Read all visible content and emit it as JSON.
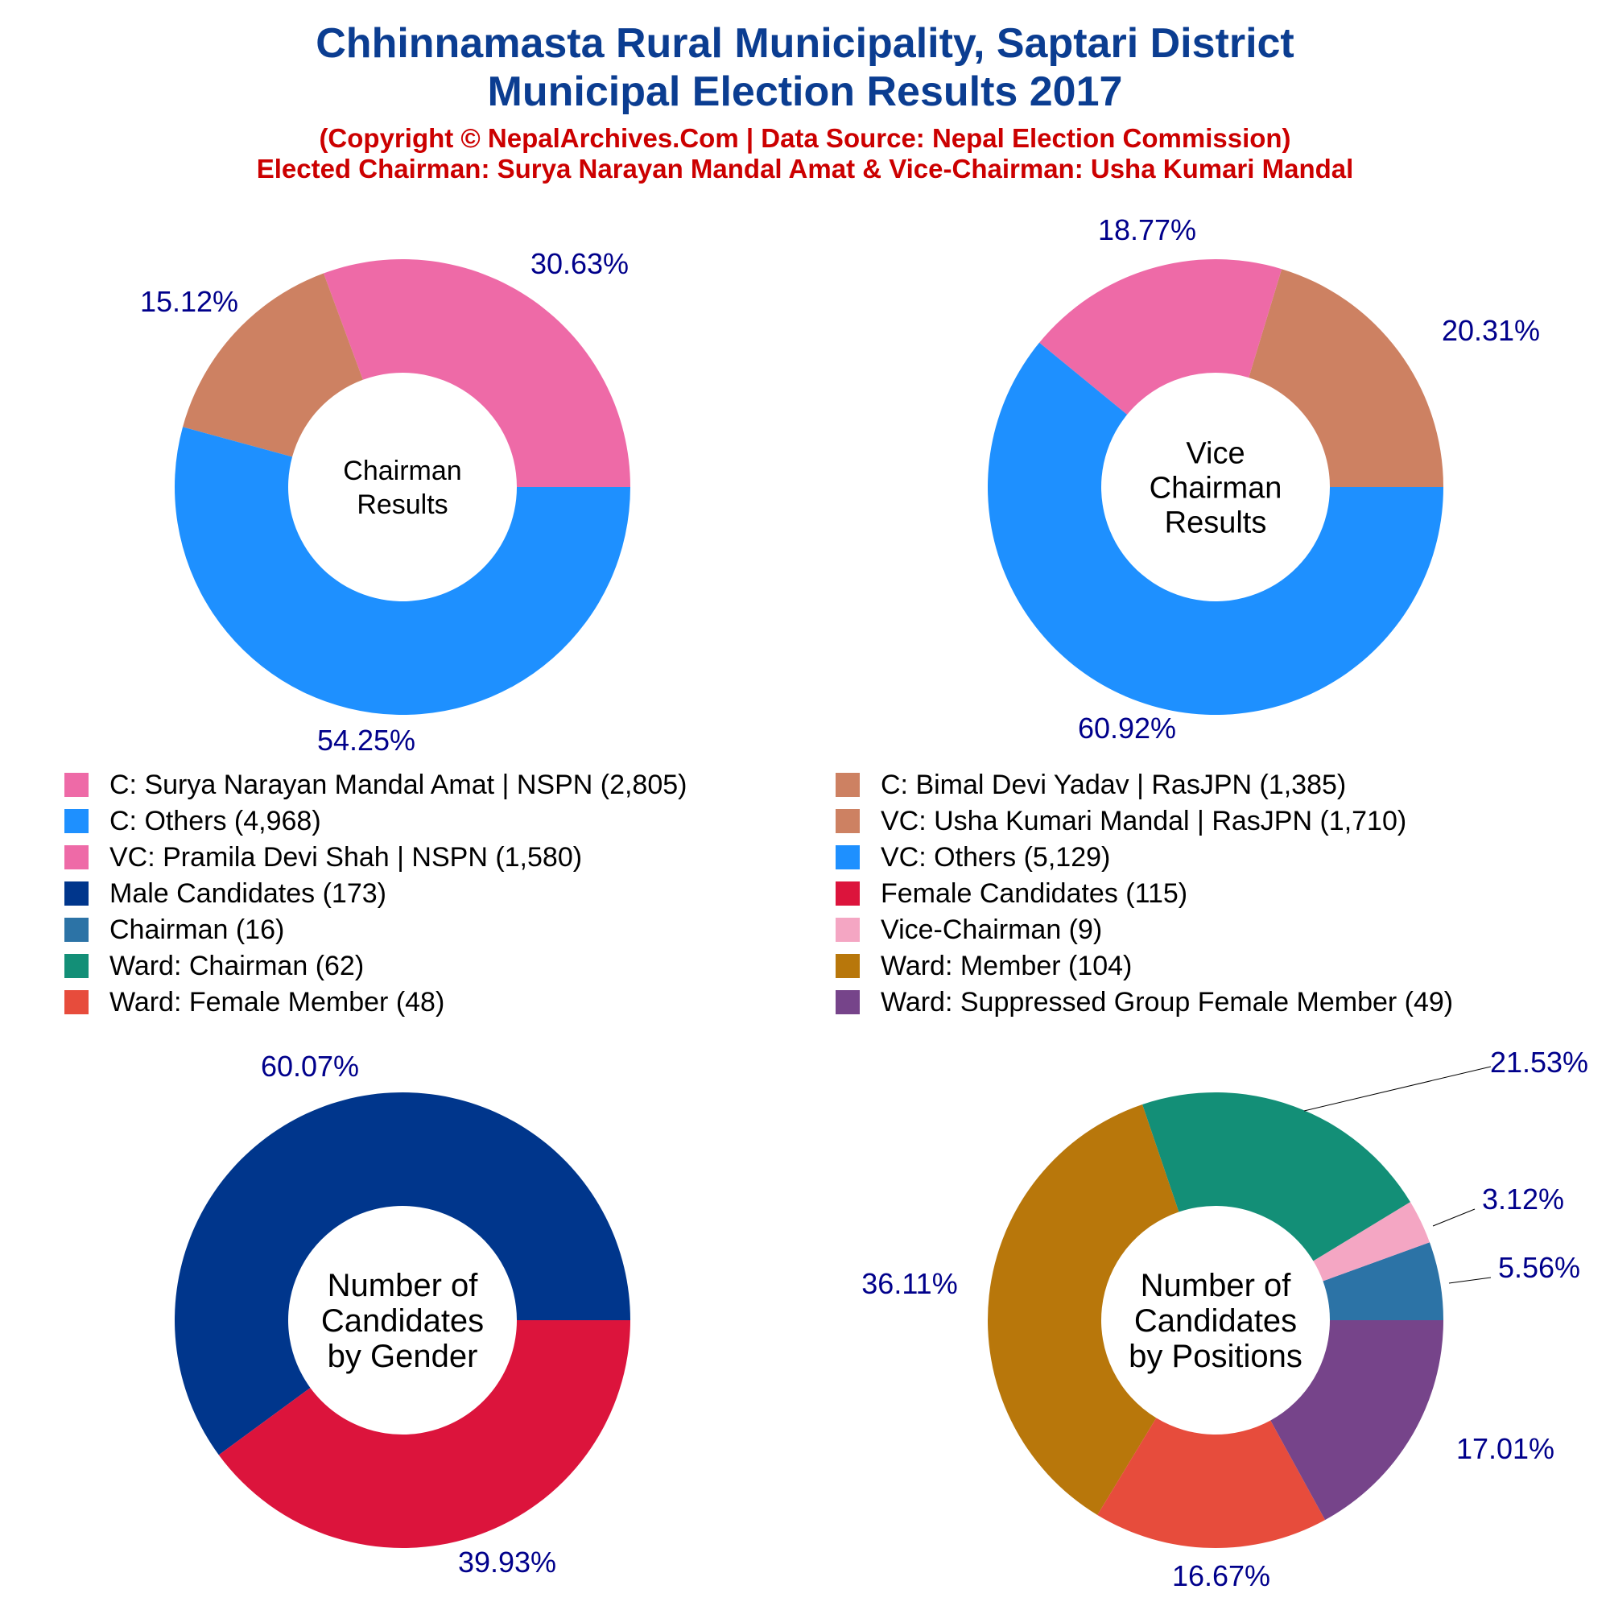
{
  "title": {
    "line1": "Chhinnamasta Rural Municipality, Saptari District",
    "line2": "Municipal Election Results 2017",
    "copyright": "(Copyright © NepalArchives.Com | Data Source: Nepal Election Commission)",
    "elected": "Elected Chairman: Surya Narayan Mandal Amat & Vice-Chairman: Usha Kumari Mandal"
  },
  "colors": {
    "title": "#0b3d91",
    "subtitle": "#cc0000",
    "percent_label": "#00008b",
    "center_text": "#000000"
  },
  "legend": [
    {
      "label": "C: Surya Narayan Mandal Amat | NSPN (2,805)",
      "color": "#ee6aa7"
    },
    {
      "label": "C: Bimal Devi Yadav | RasJPN (1,385)",
      "color": "#cd8162"
    },
    {
      "label": "C: Others (4,968)",
      "color": "#1e90ff"
    },
    {
      "label": "VC: Usha Kumari Mandal | RasJPN (1,710)",
      "color": "#cd8162"
    },
    {
      "label": "VC: Pramila Devi Shah | NSPN (1,580)",
      "color": "#ee6aa7"
    },
    {
      "label": "VC: Others (5,129)",
      "color": "#1e90ff"
    },
    {
      "label": "Male Candidates (173)",
      "color": "#00368c"
    },
    {
      "label": "Female Candidates (115)",
      "color": "#dc143c"
    },
    {
      "label": "Chairman (16)",
      "color": "#2c73a6"
    },
    {
      "label": "Vice-Chairman (9)",
      "color": "#f4a6c3"
    },
    {
      "label": "Ward: Chairman (62)",
      "color": "#138f77"
    },
    {
      "label": "Ward: Member (104)",
      "color": "#b8770b"
    },
    {
      "label": "Ward: Female Member (48)",
      "color": "#e74c3c"
    },
    {
      "label": "Ward: Suppressed Group Female Member (49)",
      "color": "#76448a"
    }
  ],
  "chart_data": [
    {
      "type": "pie",
      "name": "chairman",
      "center_label": [
        "Chairman",
        "Results"
      ],
      "slices": [
        {
          "label": "C: Surya Narayan Mandal Amat | NSPN",
          "value": 2805,
          "percent_label": "30.63%",
          "color": "#ee6aa7"
        },
        {
          "label": "C: Bimal Devi Yadav | RasJPN",
          "value": 1385,
          "percent_label": "15.12%",
          "color": "#cd8162"
        },
        {
          "label": "C: Others",
          "value": 4968,
          "percent_label": "54.25%",
          "color": "#1e90ff"
        }
      ]
    },
    {
      "type": "pie",
      "name": "vice-chairman",
      "center_label": [
        "Vice",
        "Chairman",
        "Results"
      ],
      "slices": [
        {
          "label": "VC: Usha Kumari Mandal | RasJPN",
          "value": 1710,
          "percent_label": "20.31%",
          "color": "#cd8162"
        },
        {
          "label": "VC: Pramila Devi Shah | NSPN",
          "value": 1580,
          "percent_label": "18.77%",
          "color": "#ee6aa7"
        },
        {
          "label": "VC: Others",
          "value": 5129,
          "percent_label": "60.92%",
          "color": "#1e90ff"
        }
      ]
    },
    {
      "type": "pie",
      "name": "gender",
      "center_label": [
        "Number of",
        "Candidates",
        "by Gender"
      ],
      "slices": [
        {
          "label": "Male Candidates",
          "value": 173,
          "percent_label": "60.07%",
          "color": "#00368c"
        },
        {
          "label": "Female Candidates",
          "value": 115,
          "percent_label": "39.93%",
          "color": "#dc143c"
        }
      ]
    },
    {
      "type": "pie",
      "name": "positions",
      "center_label": [
        "Number of",
        "Candidates",
        "by Positions"
      ],
      "slices": [
        {
          "label": "Chairman",
          "value": 16,
          "percent_label": "5.56%",
          "color": "#2c73a6"
        },
        {
          "label": "Vice-Chairman",
          "value": 9,
          "percent_label": "3.12%",
          "color": "#f4a6c3"
        },
        {
          "label": "Ward: Chairman",
          "value": 62,
          "percent_label": "21.53%",
          "color": "#138f77"
        },
        {
          "label": "Ward: Member",
          "value": 104,
          "percent_label": "36.11%",
          "color": "#b8770b"
        },
        {
          "label": "Ward: Female Member",
          "value": 48,
          "percent_label": "16.67%",
          "color": "#e74c3c"
        },
        {
          "label": "Ward: Suppressed Group Female Member",
          "value": 49,
          "percent_label": "17.01%",
          "color": "#76448a"
        }
      ]
    }
  ]
}
